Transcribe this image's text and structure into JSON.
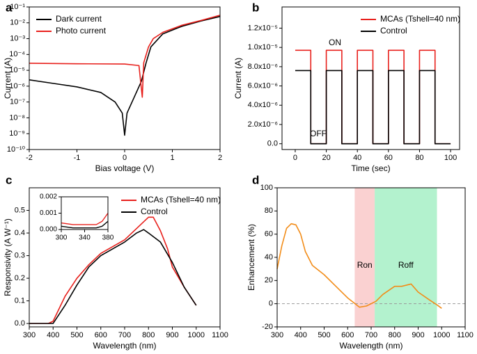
{
  "chart_data": [
    {
      "type": "line",
      "panel_label": "a",
      "xlabel": "Bias voltage (V)",
      "ylabel": "Current (A)",
      "yscale": "log",
      "xlim": [
        -2,
        2
      ],
      "xticks": [
        -2,
        -1,
        0,
        1,
        2
      ],
      "ylim": [
        1e-10,
        0.1
      ],
      "yticks": [
        {
          "value": 0.1,
          "label": "10⁻¹"
        },
        {
          "value": 0.01,
          "label": "10⁻²"
        },
        {
          "value": 0.001,
          "label": "10⁻³"
        },
        {
          "value": 0.0001,
          "label": "10⁻⁴"
        },
        {
          "value": 1e-05,
          "label": "10⁻⁵"
        },
        {
          "value": 1e-06,
          "label": "10⁻⁶"
        },
        {
          "value": 1e-07,
          "label": "10⁻⁷"
        },
        {
          "value": 1e-08,
          "label": "10⁻⁸"
        },
        {
          "value": 1e-09,
          "label": "10⁻⁹"
        },
        {
          "value": 1e-10,
          "label": "10⁻¹⁰"
        }
      ],
      "legend": "upper left",
      "series": [
        {
          "name": "Dark current",
          "color": "#000000",
          "x": [
            -2,
            -1.5,
            -1,
            -0.5,
            -0.2,
            -0.05,
            0,
            0.05,
            0.2,
            0.35,
            0.45,
            0.55,
            0.8,
            1.2,
            1.6,
            2
          ],
          "values": [
            2.5e-06,
            1.5e-06,
            9e-07,
            4e-07,
            1e-07,
            2e-08,
            8e-10,
            2e-08,
            2e-07,
            2e-06,
            3e-05,
            0.0003,
            0.002,
            0.006,
            0.013,
            0.025
          ]
        },
        {
          "name": "Photo current",
          "color": "#e8201c",
          "x": [
            -2,
            -1,
            0,
            0.3,
            0.37,
            0.4,
            0.5,
            0.6,
            0.8,
            1.2,
            1.6,
            2
          ],
          "values": [
            2.8e-05,
            2.6e-05,
            2.5e-05,
            2e-05,
            2e-07,
            3e-05,
            0.0003,
            0.001,
            0.0025,
            0.007,
            0.014,
            0.03
          ]
        }
      ]
    },
    {
      "type": "line",
      "panel_label": "b",
      "xlabel": "Time (sec)",
      "ylabel": "Current (A)",
      "xlim": [
        -8.5,
        105.8
      ],
      "xticks": [
        0,
        20,
        40,
        60,
        80,
        100
      ],
      "ylim": [
        -6e-07,
        1.42e-05
      ],
      "yticks": [
        {
          "value": 0,
          "label": "0.0"
        },
        {
          "value": 2e-06,
          "label": "2.0x10⁻⁶"
        },
        {
          "value": 4e-06,
          "label": "4.0x10⁻⁶"
        },
        {
          "value": 6e-06,
          "label": "6.0x10⁻⁶"
        },
        {
          "value": 8e-06,
          "label": "8.0x10⁻⁶"
        },
        {
          "value": 1e-05,
          "label": "1.0x10⁻⁵"
        },
        {
          "value": 1.2e-05,
          "label": "1.2x10⁻⁵"
        }
      ],
      "legend": "upper right",
      "annotations": [
        "ON",
        "OFF"
      ],
      "series": [
        {
          "name": "MCAs (Tshell=40 nm)",
          "color": "#e8201c",
          "x": [
            0,
            10,
            10,
            20,
            20,
            30,
            30,
            40,
            40,
            50,
            50,
            60,
            60,
            70,
            70,
            80,
            80,
            90,
            90,
            100
          ],
          "values": [
            9.7e-06,
            9.7e-06,
            0,
            0,
            9.7e-06,
            9.7e-06,
            0,
            0,
            9.7e-06,
            9.7e-06,
            0,
            0,
            9.7e-06,
            9.7e-06,
            0,
            0,
            9.7e-06,
            9.7e-06,
            0,
            0
          ]
        },
        {
          "name": "Control",
          "color": "#000000",
          "x": [
            0,
            10,
            10,
            20,
            20,
            30,
            30,
            40,
            40,
            50,
            50,
            60,
            60,
            70,
            70,
            80,
            80,
            90,
            90,
            100
          ],
          "values": [
            7.6e-06,
            7.6e-06,
            0,
            0,
            7.6e-06,
            7.6e-06,
            0,
            0,
            7.6e-06,
            7.6e-06,
            0,
            0,
            7.6e-06,
            7.6e-06,
            0,
            0,
            7.6e-06,
            7.6e-06,
            0,
            0
          ]
        }
      ]
    },
    {
      "type": "line",
      "panel_label": "c",
      "xlabel": "Wavelength (nm)",
      "ylabel": "Responsivity (A W⁻¹)",
      "xlim": [
        300,
        1100
      ],
      "xticks": [
        300,
        400,
        500,
        600,
        700,
        800,
        900,
        1000,
        1100
      ],
      "ylim": [
        -0.015,
        0.6
      ],
      "yticks": [
        {
          "value": 0,
          "label": "0.0"
        },
        0.1,
        0.2,
        0.3,
        0.4,
        0.5
      ],
      "legend": "upper right",
      "series": [
        {
          "name": "MCAs (Tshell=40 nm)",
          "color": "#e8201c",
          "x": [
            300,
            380,
            400,
            450,
            500,
            550,
            600,
            650,
            700,
            750,
            800,
            820,
            850,
            880,
            900,
            950,
            1000
          ],
          "values": [
            0,
            0,
            0.01,
            0.12,
            0.2,
            0.26,
            0.31,
            0.34,
            0.37,
            0.42,
            0.47,
            0.47,
            0.41,
            0.33,
            0.25,
            0.16,
            0.08
          ]
        },
        {
          "name": "Control",
          "color": "#000000",
          "x": [
            300,
            400,
            450,
            500,
            550,
            600,
            650,
            700,
            750,
            780,
            800,
            850,
            900,
            950,
            1000
          ],
          "values": [
            0,
            0,
            0.08,
            0.17,
            0.25,
            0.3,
            0.33,
            0.36,
            0.4,
            0.415,
            0.4,
            0.36,
            0.27,
            0.16,
            0.08
          ]
        }
      ],
      "inset": {
        "xlim": [
          300,
          380
        ],
        "xticks": [
          300,
          340,
          380
        ],
        "ylim": [
          0,
          0.002
        ],
        "yticks": [
          {
            "value": 0,
            "label": "0.000"
          },
          {
            "value": 0.001,
            "label": "0.001"
          },
          {
            "value": 0.002,
            "label": "0.002"
          }
        ],
        "series": [
          {
            "color": "#e8201c",
            "x": [
              300,
              320,
              340,
              360,
              370,
              380
            ],
            "values": [
              0.0004,
              0.0003,
              0.0003,
              0.0003,
              0.0005,
              0.001
            ]
          },
          {
            "color": "#000000",
            "x": [
              300,
              320,
              340,
              360,
              370,
              380
            ],
            "values": [
              0.0002,
              0.0001,
              0.0001,
              0.0001,
              0.0002,
              0.0005
            ]
          }
        ]
      }
    },
    {
      "type": "line",
      "panel_label": "d",
      "xlabel": "Wavelength (nm)",
      "ylabel": "Enhancement (%)",
      "xlim": [
        300,
        1100
      ],
      "xticks": [
        300,
        400,
        500,
        600,
        700,
        800,
        900,
        1000,
        1100
      ],
      "ylim": [
        -20,
        100
      ],
      "yticks": [
        -20,
        0,
        20,
        40,
        60,
        80,
        100
      ],
      "hline": 0,
      "shaded_regions": [
        {
          "label": "Ron",
          "range": [
            630,
            715
          ],
          "color": "#f9c9c9",
          "text_color": "#e8201c"
        },
        {
          "label": "Roff",
          "range": [
            715,
            980
          ],
          "color": "#a6f0c6",
          "text_color": "#000000"
        }
      ],
      "series": [
        {
          "color": "#f28c18",
          "x": [
            300,
            320,
            340,
            360,
            380,
            400,
            420,
            450,
            500,
            550,
            600,
            650,
            680,
            720,
            750,
            800,
            830,
            870,
            900,
            950,
            980,
            1000
          ],
          "values": [
            30,
            50,
            65,
            69,
            68,
            60,
            45,
            33,
            25,
            15,
            5,
            -3,
            -2,
            2,
            8,
            15,
            15,
            17,
            10,
            3,
            -1,
            -4
          ]
        }
      ]
    }
  ]
}
